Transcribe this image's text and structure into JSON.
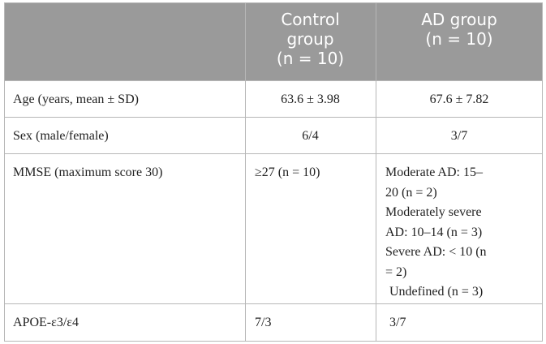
{
  "table": {
    "headers": {
      "col1": "",
      "col2": {
        "line1": "Control",
        "line2": "group",
        "line3": "(n = 10)"
      },
      "col3": {
        "line1": "AD group",
        "line2": "(n = 10)"
      }
    },
    "rows": [
      {
        "label": "Age (years, mean ± SD)",
        "control": "63.6 ± 3.98",
        "ad": "67.6 ± 7.82"
      },
      {
        "label": "Sex (male/female)",
        "control": "6/4",
        "ad": "3/7"
      },
      {
        "label": "MMSE (maximum score 30)",
        "control": "≥27 (n = 10)",
        "ad_lines": [
          "Moderate AD: 15–",
          "20 (n = 2)",
          "Moderately severe",
          "AD: 10–14 (n = 3)",
          "Severe AD: < 10 (n",
          "= 2)",
          "Undefined (n = 3)"
        ]
      },
      {
        "label": "APOE-ε3/ε4",
        "control": "7/3",
        "ad": "3/7"
      }
    ]
  }
}
